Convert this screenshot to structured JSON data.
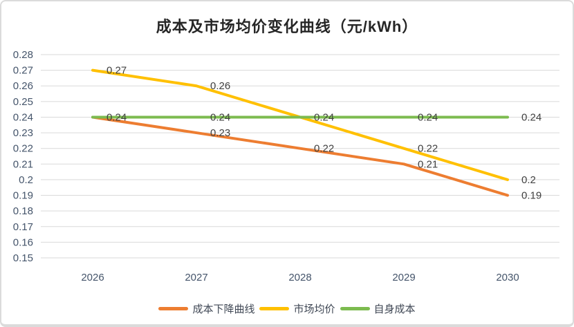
{
  "chart_data": {
    "type": "line",
    "title": "成本及市场均价变化曲线（元/kWh）",
    "categories": [
      "2026",
      "2027",
      "2028",
      "2029",
      "2030"
    ],
    "series": [
      {
        "key": "cost-decline-curve",
        "name": "成本下降曲线",
        "color": "#ED7D31",
        "values": [
          0.24,
          0.23,
          0.22,
          0.21,
          0.19
        ],
        "labels": [
          "0.24",
          "0.23",
          "0.22",
          "0.21",
          "0.19"
        ]
      },
      {
        "key": "market-average-price",
        "name": "市场均价",
        "color": "#FFC000",
        "values": [
          0.27,
          0.26,
          0.24,
          0.22,
          0.2
        ],
        "labels": [
          "0.27",
          "0.26",
          "0.24",
          "0.22",
          "0.2"
        ]
      },
      {
        "key": "self-cost",
        "name": "自身成本",
        "color": "#7CBB4F",
        "values": [
          0.24,
          0.24,
          0.24,
          0.24,
          0.24
        ],
        "labels": [
          "0.24",
          "0.24",
          "0.24",
          "0.24",
          "0.24"
        ]
      }
    ],
    "ylim": [
      0.15,
      0.28
    ],
    "ystep": 0.01,
    "ytick_labels": [
      "0.28",
      "0.27",
      "0.26",
      "0.25",
      "0.24",
      "0.23",
      "0.22",
      "0.21",
      "0.2",
      "0.19",
      "0.18",
      "0.17",
      "0.16",
      "0.15"
    ],
    "xlabel": "",
    "ylabel": "",
    "grid": true,
    "legend_position": "bottom"
  },
  "ui_colors": {
    "gridline": "#D9D9D9",
    "tick_text": "#44546A",
    "data_label_text": "#404040",
    "title_text": "#262626",
    "card_border": "#DBDBDB",
    "background": "#FFFFFF"
  }
}
